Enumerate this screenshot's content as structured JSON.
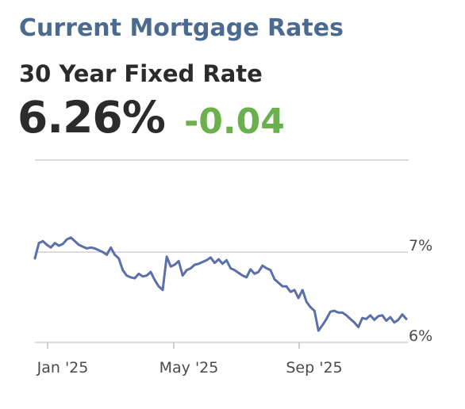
{
  "header": {
    "title": "Current Mortgage Rates",
    "product": "30 Year Fixed Rate",
    "rate": "6.26%",
    "change": "-0.04"
  },
  "colors": {
    "title": "#4a6b8f",
    "change_positive_direction": "#6ab04c",
    "line": "#5b6fa8"
  },
  "chart_data": {
    "type": "line",
    "title": "",
    "xlabel": "",
    "ylabel": "",
    "x_ticks": [
      "Jan '25",
      "May '25",
      "Sep '25"
    ],
    "y_ticks": [
      "7%",
      "6%"
    ],
    "ylim": [
      5.9,
      7.3
    ],
    "grid": "horizontal at 7% and 6%",
    "series": [
      {
        "values": [
          6.93,
          7.1,
          7.12,
          7.08,
          7.05,
          7.1,
          7.07,
          7.09,
          7.14,
          7.16,
          7.12,
          7.08,
          7.06,
          7.04,
          7.05,
          7.04,
          7.02,
          7.0,
          6.97,
          7.05,
          6.97,
          6.93,
          6.8,
          6.74,
          6.72,
          6.71,
          6.76,
          6.73,
          6.74,
          6.78,
          6.69,
          6.62,
          6.58,
          6.95,
          6.84,
          6.86,
          6.9,
          6.74,
          6.8,
          6.82,
          6.86,
          6.87,
          6.89,
          6.91,
          6.94,
          6.88,
          6.92,
          6.87,
          6.91,
          6.82,
          6.8,
          6.77,
          6.74,
          6.72,
          6.81,
          6.76,
          6.78,
          6.85,
          6.82,
          6.8,
          6.7,
          6.66,
          6.62,
          6.62,
          6.56,
          6.58,
          6.49,
          6.58,
          6.45,
          6.39,
          6.35,
          6.13,
          6.19,
          6.26,
          6.34,
          6.35,
          6.33,
          6.33,
          6.3,
          6.26,
          6.22,
          6.17,
          6.27,
          6.26,
          6.3,
          6.25,
          6.29,
          6.3,
          6.24,
          6.28,
          6.22,
          6.25,
          6.31,
          6.26
        ]
      }
    ]
  }
}
